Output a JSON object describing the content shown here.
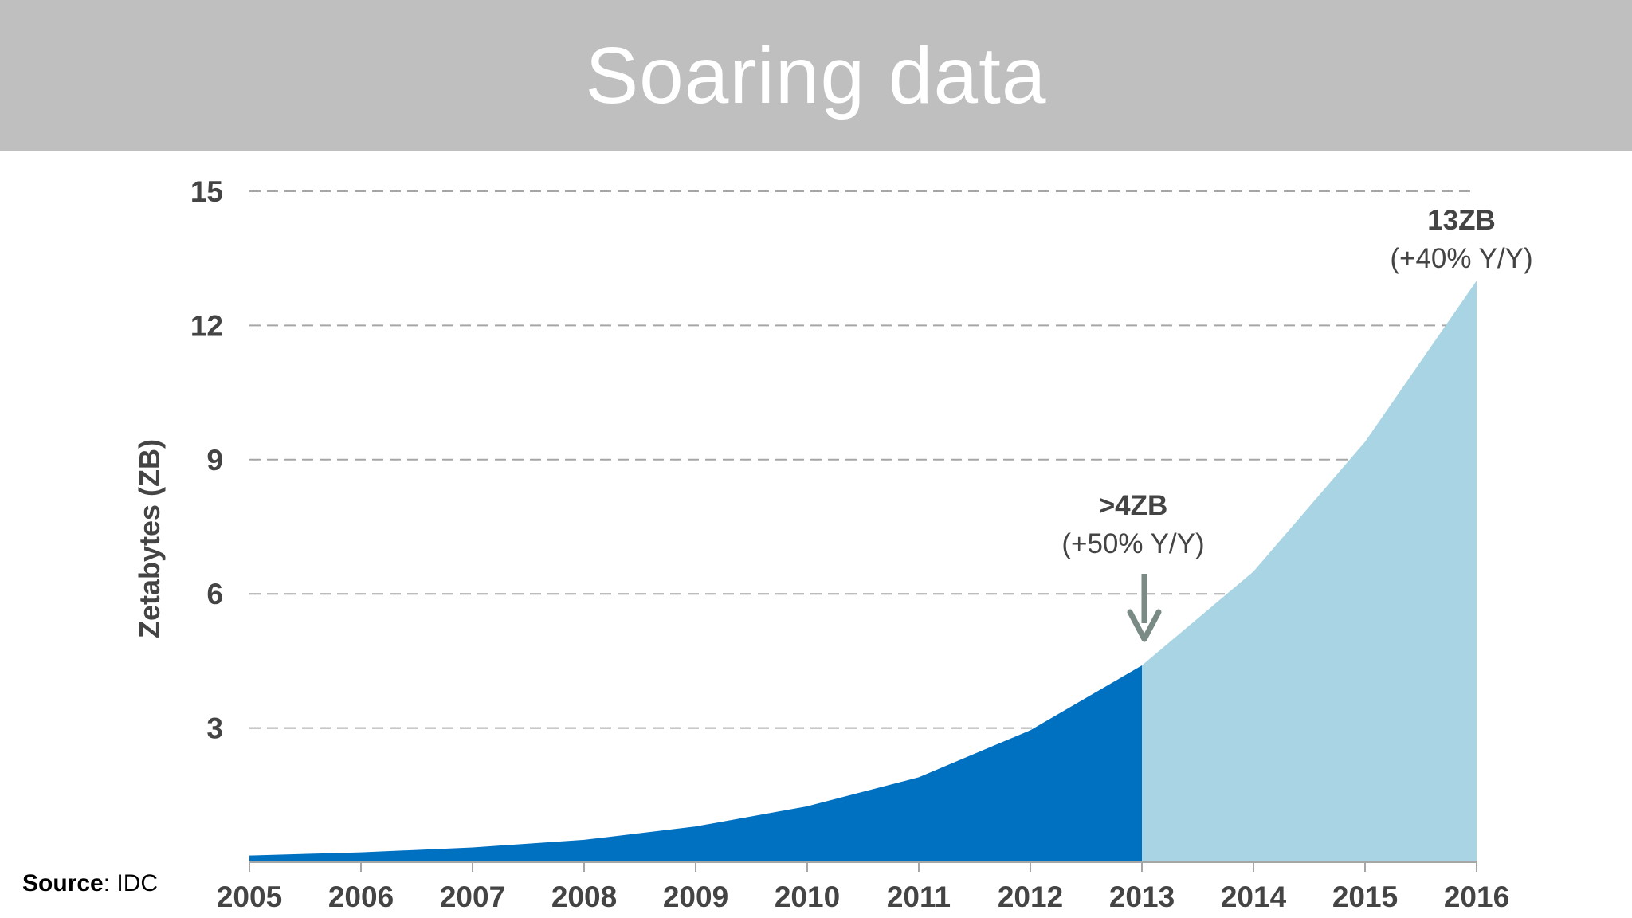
{
  "header": {
    "title": "Soaring data"
  },
  "source": {
    "label": "Source",
    "value": ": IDC"
  },
  "chart_data": {
    "type": "area",
    "x": [
      2005,
      2006,
      2007,
      2008,
      2009,
      2010,
      2011,
      2012,
      2013,
      2014,
      2015,
      2016
    ],
    "series": [
      {
        "values": [
          0.15,
          0.22,
          0.33,
          0.5,
          0.8,
          1.25,
          1.9,
          2.95,
          4.4,
          null,
          null,
          null
        ],
        "color": "#0070c0"
      },
      {
        "values": [
          null,
          null,
          null,
          null,
          null,
          null,
          null,
          null,
          4.4,
          6.5,
          9.4,
          13.0
        ],
        "color": "#a9d4e4"
      }
    ],
    "ylabel": "Zetabytes (ZB)",
    "xlabel": "",
    "ylim": [
      0,
      15
    ],
    "yticks": [
      3,
      6,
      9,
      12,
      15
    ],
    "grid": true,
    "annotations": [
      {
        "x": 2013,
        "line1": ">4ZB",
        "line2": "(+50% Y/Y)",
        "arrow": true
      },
      {
        "x": 2016,
        "line1": "13ZB",
        "line2": "(+40% Y/Y)",
        "arrow": false
      }
    ]
  }
}
